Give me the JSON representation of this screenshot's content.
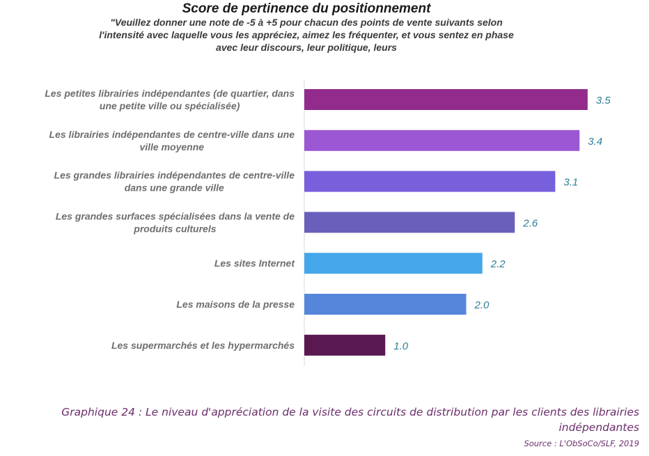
{
  "chart_data": {
    "type": "bar",
    "orientation": "horizontal",
    "title": "Score de pertinence du positionnement",
    "subtitle_lines": [
      "\"Veuillez donner une note de -5 à +5 pour chacun des points de vente suivants selon",
      "l'intensité avec laquelle vous les appréciez, aimez les fréquenter, et vous sentez en phase",
      "avec leur discours, leur politique, leurs"
    ],
    "categories": [
      [
        "Les petites librairies indépendantes (de quartier, dans",
        "une petite ville ou spécialisée)"
      ],
      [
        "Les librairies indépendantes de centre-ville dans une",
        "ville moyenne"
      ],
      [
        "Les grandes librairies indépendantes de centre-ville",
        "dans une grande ville"
      ],
      [
        "Les grandes surfaces spécialisées dans la vente de",
        "produits culturels"
      ],
      [
        "Les sites Internet"
      ],
      [
        "Les maisons de la presse"
      ],
      [
        "Les supermarchés et les hypermarchés"
      ]
    ],
    "values": [
      3.5,
      3.4,
      3.1,
      2.6,
      2.2,
      2.0,
      1.0
    ],
    "value_labels": [
      "3.5",
      "3.4",
      "3.1",
      "2.6",
      "2.2",
      "2.0",
      "1.0"
    ],
    "bar_colors": [
      "#922b8c",
      "#9b57d4",
      "#7860dc",
      "#6b5fbc",
      "#45a7ea",
      "#5586dc",
      "#5a1850"
    ],
    "xlim": [
      0,
      4
    ],
    "grid": false
  },
  "caption": {
    "line1": "Graphique 24 : Le niveau d'appréciation de la visite des circuits de distribution par les clients des librairies",
    "line2": "indépendantes",
    "source": "Source : L'ObSoCo/SLF, 2019"
  }
}
